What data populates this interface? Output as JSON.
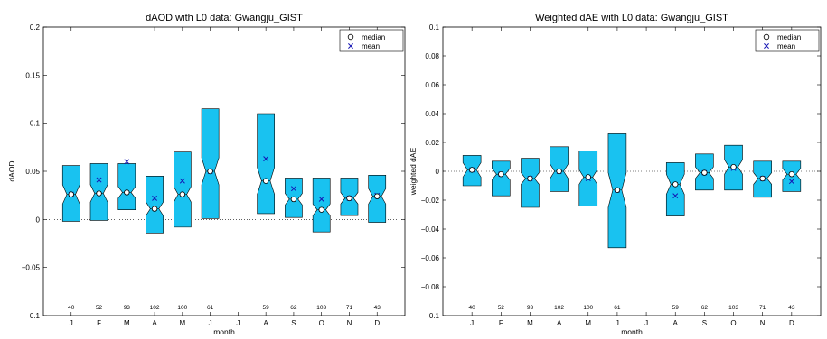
{
  "chart_data": [
    {
      "type": "box",
      "title": "dAOD with L0 data: Gwangju_GIST",
      "xlabel": "month",
      "ylabel": "dAOD",
      "ylim": [
        -0.1,
        0.2
      ],
      "yticks": [
        -0.1,
        -0.05,
        0,
        0.05,
        0.1,
        0.15,
        0.2
      ],
      "ytick_labels": [
        "−0.1",
        "−0.05",
        "0",
        "0.05",
        "0.1",
        "0.15",
        "0.2"
      ],
      "categories": [
        "J",
        "F",
        "M",
        "A",
        "M",
        "J",
        "J",
        "A",
        "S",
        "O",
        "N",
        "D"
      ],
      "legend": [
        "median",
        "mean"
      ],
      "legend_position": "top-right",
      "series": [
        {
          "count": "40",
          "q1": -0.002,
          "median": 0.026,
          "q3": 0.056,
          "notch_low": 0.016,
          "notch_high": 0.036,
          "mean": 0.026
        },
        {
          "count": "52",
          "q1": -0.001,
          "median": 0.027,
          "q3": 0.058,
          "notch_low": 0.018,
          "notch_high": 0.036,
          "mean": 0.041
        },
        {
          "count": "93",
          "q1": 0.01,
          "median": 0.028,
          "q3": 0.058,
          "notch_low": 0.022,
          "notch_high": 0.034,
          "mean": 0.06
        },
        {
          "count": "102",
          "q1": -0.014,
          "median": 0.011,
          "q3": 0.045,
          "notch_low": 0.004,
          "notch_high": 0.018,
          "mean": 0.022
        },
        {
          "count": "100",
          "q1": -0.008,
          "median": 0.026,
          "q3": 0.07,
          "notch_low": 0.018,
          "notch_high": 0.034,
          "mean": 0.04
        },
        {
          "count": "61",
          "q1": 0.001,
          "median": 0.05,
          "q3": 0.115,
          "notch_low": 0.036,
          "notch_high": 0.064,
          "mean": 0.05
        },
        null,
        {
          "count": "59",
          "q1": 0.006,
          "median": 0.04,
          "q3": 0.11,
          "notch_low": 0.026,
          "notch_high": 0.054,
          "mean": 0.063
        },
        {
          "count": "62",
          "q1": 0.002,
          "median": 0.021,
          "q3": 0.043,
          "notch_low": 0.015,
          "notch_high": 0.027,
          "mean": 0.032
        },
        {
          "count": "103",
          "q1": -0.013,
          "median": 0.01,
          "q3": 0.043,
          "notch_low": 0.004,
          "notch_high": 0.016,
          "mean": 0.021
        },
        {
          "count": "71",
          "q1": 0.004,
          "median": 0.022,
          "q3": 0.043,
          "notch_low": 0.016,
          "notch_high": 0.028,
          "mean": 0.022
        },
        {
          "count": "43",
          "q1": -0.003,
          "median": 0.024,
          "q3": 0.046,
          "notch_low": 0.016,
          "notch_high": 0.032,
          "mean": 0.025
        }
      ]
    },
    {
      "type": "box",
      "title": "Weighted dAE with L0 data: Gwangju_GIST",
      "xlabel": "month",
      "ylabel": "weighted dAE",
      "ylim": [
        -0.1,
        0.1
      ],
      "yticks": [
        -0.1,
        -0.08,
        -0.06,
        -0.04,
        -0.02,
        0,
        0.02,
        0.04,
        0.06,
        0.08,
        0.1
      ],
      "ytick_labels": [
        "−0.1",
        "−0.08",
        "−0.06",
        "−0.04",
        "−0.02",
        "0",
        "0.02",
        "0.04",
        "0.06",
        "0.08",
        "0.1"
      ],
      "categories": [
        "J",
        "F",
        "M",
        "A",
        "M",
        "J",
        "J",
        "A",
        "S",
        "O",
        "N",
        "D"
      ],
      "legend": [
        "median",
        "mean"
      ],
      "legend_position": "top-right",
      "series": [
        {
          "count": "40",
          "q1": -0.01,
          "median": 0.001,
          "q3": 0.011,
          "notch_low": -0.004,
          "notch_high": 0.006,
          "mean": 0.001
        },
        {
          "count": "52",
          "q1": -0.017,
          "median": -0.002,
          "q3": 0.007,
          "notch_low": -0.006,
          "notch_high": 0.002,
          "mean": -0.002
        },
        {
          "count": "93",
          "q1": -0.025,
          "median": -0.005,
          "q3": 0.009,
          "notch_low": -0.009,
          "notch_high": -0.001,
          "mean": -0.005
        },
        {
          "count": "102",
          "q1": -0.014,
          "median": 0.0,
          "q3": 0.017,
          "notch_low": -0.005,
          "notch_high": 0.005,
          "mean": 0.0
        },
        {
          "count": "100",
          "q1": -0.024,
          "median": -0.004,
          "q3": 0.014,
          "notch_low": -0.009,
          "notch_high": 0.001,
          "mean": -0.005
        },
        {
          "count": "61",
          "q1": -0.053,
          "median": -0.013,
          "q3": 0.026,
          "notch_low": -0.025,
          "notch_high": -0.001,
          "mean": -0.013
        },
        null,
        {
          "count": "59",
          "q1": -0.031,
          "median": -0.009,
          "q3": 0.006,
          "notch_low": -0.016,
          "notch_high": -0.002,
          "mean": -0.017
        },
        {
          "count": "62",
          "q1": -0.013,
          "median": -0.001,
          "q3": 0.012,
          "notch_low": -0.005,
          "notch_high": 0.003,
          "mean": -0.001
        },
        {
          "count": "103",
          "q1": -0.013,
          "median": 0.003,
          "q3": 0.018,
          "notch_low": -0.002,
          "notch_high": 0.008,
          "mean": 0.002
        },
        {
          "count": "71",
          "q1": -0.018,
          "median": -0.005,
          "q3": 0.007,
          "notch_low": -0.009,
          "notch_high": -0.001,
          "mean": -0.005
        },
        {
          "count": "43",
          "q1": -0.014,
          "median": -0.002,
          "q3": 0.007,
          "notch_low": -0.006,
          "notch_high": 0.002,
          "mean": -0.007
        }
      ]
    }
  ],
  "colors": {
    "box_fill": "#19c2f0",
    "mean_marker": "#1414b4",
    "median_marker": "#ffffff"
  }
}
